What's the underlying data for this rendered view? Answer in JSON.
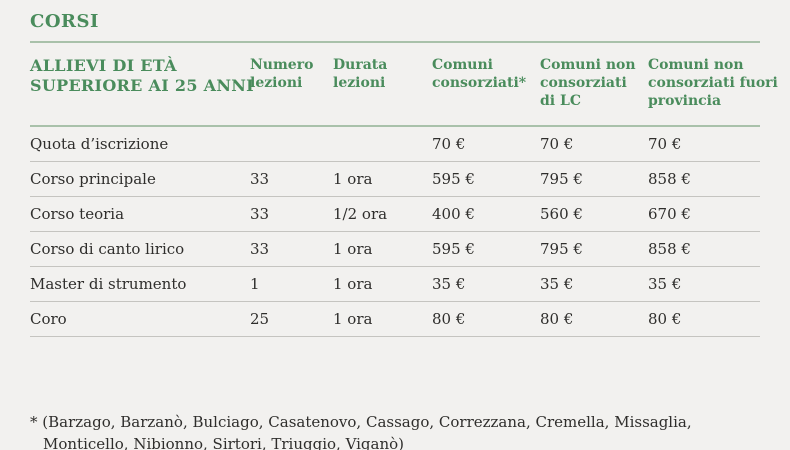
{
  "page": {
    "title": "CORSI"
  },
  "colors": {
    "accent_green": "#4a8c5c",
    "rule_sage": "#a9c1aa",
    "background": "#f2f1ef",
    "row_divider": "#c5c4c0",
    "body_text": "#2f2e2c"
  },
  "table": {
    "group_header": {
      "line1": "ALLIEVI DI ETÀ",
      "line2": "SUPERIORE AI 25 ANNI"
    },
    "columns": [
      {
        "lines": [
          "Numero",
          "lezioni"
        ]
      },
      {
        "lines": [
          "Durata",
          "lezioni"
        ]
      },
      {
        "lines": [
          "Comuni",
          "consorziati*"
        ]
      },
      {
        "lines": [
          "Comuni non",
          "consorziati",
          "di LC"
        ]
      },
      {
        "lines": [
          "Comuni non",
          "consorziati fuori",
          "provincia"
        ]
      }
    ],
    "rows": [
      {
        "label": "Quota d’iscrizione",
        "numero": "",
        "durata": "",
        "consorziati": "70 €",
        "non_consorziati_lc": "70 €",
        "fuori_provincia": "70 €"
      },
      {
        "label": "Corso principale",
        "numero": "33",
        "durata": "1 ora",
        "consorziati": "595 €",
        "non_consorziati_lc": "795 €",
        "fuori_provincia": "858 €"
      },
      {
        "label": "Corso teoria",
        "numero": "33",
        "durata": "1/2 ora",
        "consorziati": "400 €",
        "non_consorziati_lc": "560 €",
        "fuori_provincia": "670 €"
      },
      {
        "label": "Corso di canto lirico",
        "numero": "33",
        "durata": "1 ora",
        "consorziati": "595 €",
        "non_consorziati_lc": "795 €",
        "fuori_provincia": "858 €"
      },
      {
        "label": "Master di strumento",
        "numero": "1",
        "durata": "1 ora",
        "consorziati": "35 €",
        "non_consorziati_lc": "35 €",
        "fuori_provincia": "35 €"
      },
      {
        "label": "Coro",
        "numero": "25",
        "durata": "1 ora",
        "consorziati": "80 €",
        "non_consorziati_lc": "80 €",
        "fuori_provincia": "80 €"
      }
    ]
  },
  "footnote": {
    "line1": "* (Barzago, Barzanò, Bulciago, Casatenovo, Cassago, Correzzana, Cremella, Missaglia,",
    "line2": "Monticello, Nibionno, Sirtori, Triuggio, Viganò)"
  }
}
